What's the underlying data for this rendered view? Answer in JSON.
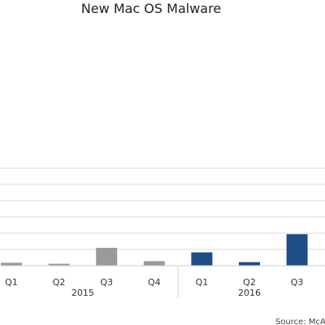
{
  "chart_data": {
    "type": "bar",
    "title": "New Mac OS Malware",
    "categories": [
      "Q1",
      "Q2",
      "Q3",
      "Q4",
      "Q1",
      "Q2",
      "Q3"
    ],
    "year_groups": [
      {
        "label": "2015",
        "start": 0,
        "end": 3
      },
      {
        "label": "2016",
        "start": 4,
        "end": 6
      }
    ],
    "values": [
      9,
      6,
      55,
      14,
      41,
      11,
      97
    ],
    "ylim": [
      0,
      400
    ],
    "gridlines": [
      50,
      100,
      150,
      200,
      250,
      300
    ],
    "grid": true,
    "series_colors": [
      "#9a9a9e",
      "#9a9a9e",
      "#9a9a9e",
      "#9a9a9e",
      "#1f4e86",
      "#1f4e86",
      "#1f4e86"
    ],
    "source": "Source: McAf"
  }
}
